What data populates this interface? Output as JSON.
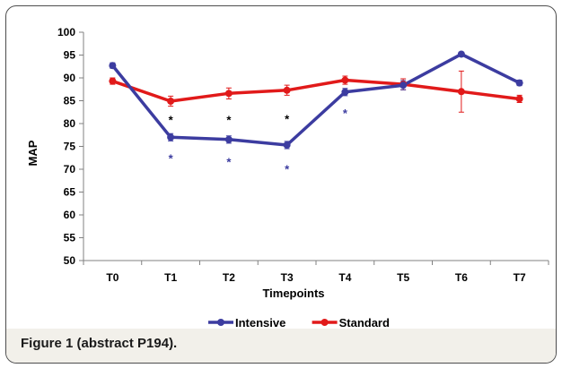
{
  "figure": {
    "caption": "Figure 1 (abstract P194)."
  },
  "chart_data": {
    "type": "line",
    "title": "",
    "xlabel": "Timepoints",
    "ylabel": "MAP",
    "categories": [
      "T0",
      "T1",
      "T2",
      "T3",
      "T4",
      "T5",
      "T6",
      "T7"
    ],
    "ylim": [
      50,
      100
    ],
    "yticks": [
      50,
      55,
      60,
      65,
      70,
      75,
      80,
      85,
      90,
      95,
      100
    ],
    "grid": false,
    "legend_position": "bottom",
    "series": [
      {
        "name": "Intensive",
        "color": "#3c3ca0",
        "values": [
          92.7,
          77.0,
          76.5,
          75.3,
          86.9,
          88.4,
          95.2,
          88.9
        ],
        "errors": [
          0.6,
          0.8,
          0.8,
          0.8,
          0.8,
          1.0,
          0.4,
          0.6
        ]
      },
      {
        "name": "Standard",
        "color": "#e11a1a",
        "values": [
          89.3,
          84.9,
          86.6,
          87.3,
          89.5,
          88.6,
          87.0,
          85.4
        ],
        "errors": [
          0.7,
          1.1,
          1.2,
          1.1,
          0.9,
          1.2,
          4.5,
          0.8
        ]
      }
    ],
    "annotations": [
      {
        "text": "*",
        "category": "T1",
        "y": 81.5,
        "color": "#000000"
      },
      {
        "text": "*",
        "category": "T2",
        "y": 81.5,
        "color": "#000000"
      },
      {
        "text": "*",
        "category": "T3",
        "y": 81.7,
        "color": "#000000"
      },
      {
        "text": "*",
        "category": "T1",
        "y": 73.0,
        "color": "#3c3ca0"
      },
      {
        "text": "*",
        "category": "T2",
        "y": 72.3,
        "color": "#3c3ca0"
      },
      {
        "text": "*",
        "category": "T3",
        "y": 70.7,
        "color": "#3c3ca0"
      },
      {
        "text": "*",
        "category": "T4",
        "y": 82.9,
        "color": "#3c3ca0"
      }
    ]
  }
}
